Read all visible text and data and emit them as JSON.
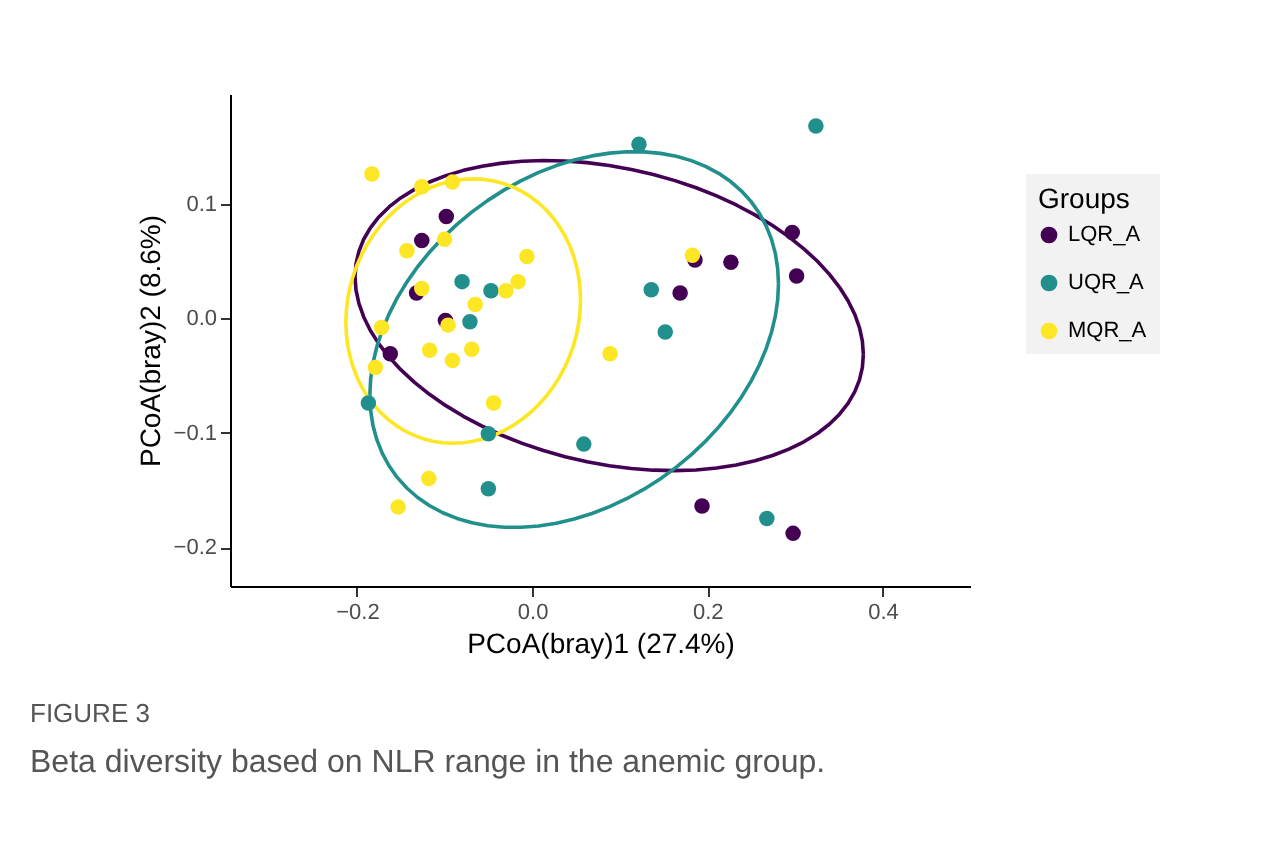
{
  "chart_data": {
    "type": "scatter",
    "xlabel": "PCoA(bray)1 (27.4%)",
    "ylabel": "PCoA(bray)2 (8.6%)",
    "legend_title": "Groups",
    "legend": "right",
    "grid": false,
    "marker": "circle",
    "xlim": [
      -0.345,
      0.5
    ],
    "ylim": [
      -0.234,
      0.196
    ],
    "xticks": [
      {
        "value": -0.2,
        "label": "−0.2"
      },
      {
        "value": 0.0,
        "label": "0.0"
      },
      0.2,
      0.4
    ],
    "yticks": [
      {
        "value": -0.2,
        "label": "−0.2"
      },
      {
        "value": -0.1,
        "label": "−0.1"
      },
      {
        "value": 0.0,
        "label": "0.0"
      },
      0.1
    ],
    "series": [
      {
        "name": "LQR_A",
        "color": "#440154",
        "x": [
          -0.098,
          -0.126,
          -0.132,
          -0.099,
          -0.162,
          0.297,
          0.186,
          0.227,
          0.302,
          0.169,
          0.194,
          0.298
        ],
        "values": [
          0.089,
          0.068,
          0.022,
          -0.002,
          -0.031,
          0.075,
          0.051,
          0.049,
          0.037,
          0.022,
          -0.164,
          -0.188
        ]
      },
      {
        "name": "UQR_A",
        "color": "#21908c",
        "x": [
          -0.08,
          -0.047,
          -0.071,
          -0.187,
          -0.05,
          0.059,
          -0.05,
          0.122,
          0.324,
          0.136,
          0.152,
          0.268
        ],
        "values": [
          0.032,
          0.024,
          -0.003,
          -0.074,
          -0.101,
          -0.11,
          -0.149,
          0.152,
          0.168,
          0.025,
          -0.012,
          -0.175
        ]
      },
      {
        "name": "MQR_A",
        "color": "#fde725",
        "x": [
          -0.183,
          -0.126,
          -0.091,
          -0.1,
          -0.143,
          -0.006,
          -0.016,
          -0.03,
          -0.065,
          -0.126,
          -0.172,
          -0.096,
          -0.117,
          -0.069,
          -0.091,
          -0.179,
          -0.044,
          -0.118,
          -0.153,
          0.089,
          0.183
        ],
        "values": [
          0.126,
          0.115,
          0.119,
          0.069,
          0.059,
          0.054,
          0.032,
          0.024,
          0.012,
          0.026,
          -0.008,
          -0.006,
          -0.028,
          -0.027,
          -0.037,
          -0.043,
          -0.074,
          -0.14,
          -0.165,
          -0.031,
          0.055
        ]
      }
    ],
    "annotations": [
      "FIGURE 3",
      "Beta diversity based on NLR range in the anemic group."
    ]
  }
}
